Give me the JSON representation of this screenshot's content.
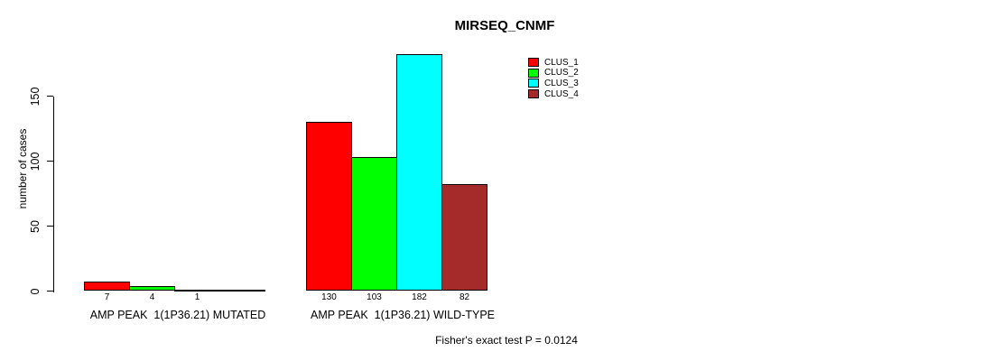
{
  "page": {
    "background_color": "#ffffff",
    "text_color": "#000000"
  },
  "chart_data": {
    "type": "bar",
    "title": "MIRSEQ_CNMF",
    "xlabel": "",
    "ylabel": "number of cases",
    "categories": [
      "AMP PEAK  1(1P36.21) MUTATED",
      "AMP PEAK  1(1P36.21) WILD-TYPE"
    ],
    "series": [
      {
        "name": "CLUS_1",
        "color": "#FF0000",
        "values": [
          7,
          130
        ]
      },
      {
        "name": "CLUS_2",
        "color": "#00FF00",
        "values": [
          4,
          103
        ]
      },
      {
        "name": "CLUS_3",
        "color": "#00FFFF",
        "values": [
          1,
          182
        ]
      },
      {
        "name": "CLUS_4",
        "color": "#A52A2A",
        "values": [
          0,
          82
        ]
      }
    ],
    "bar_value_labels": [
      [
        "7",
        "4",
        "1",
        ""
      ],
      [
        "130",
        "103",
        "182",
        "82"
      ]
    ],
    "yticks": [
      0,
      50,
      100,
      150
    ],
    "ylim": [
      0,
      190
    ],
    "grid": false,
    "legend_position": "top-right",
    "bar_border_color": "#000000",
    "annotation": "Fisher's exact test P = 0.0124"
  }
}
